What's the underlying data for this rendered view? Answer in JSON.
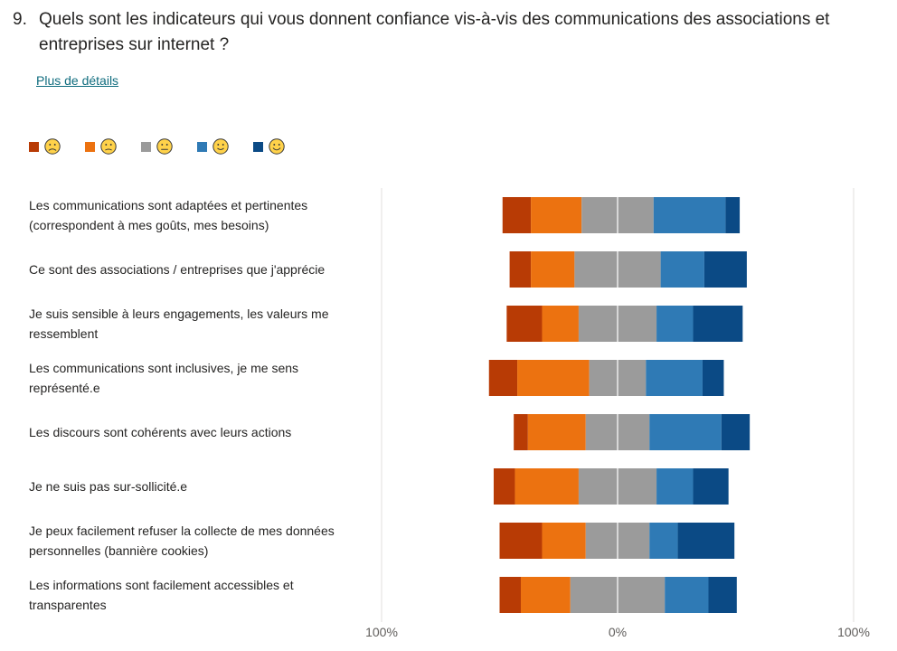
{
  "question": {
    "number": "9.",
    "text": "Quels sont les indicateurs qui vous donnent confiance vis-à-vis des communications des associations et entreprises sur internet ?"
  },
  "details_link": "Plus de détails",
  "chart_data": {
    "type": "bar",
    "subtype": "diverging-stacked-horizontal",
    "title": "Quels sont les indicateurs qui vous donnent confiance vis-à-vis des communications des associations et entreprises sur internet ?",
    "series": [
      {
        "name": "very-negative",
        "icon": "frowning-face",
        "color": "#b83b05"
      },
      {
        "name": "negative",
        "icon": "slightly-frowning-face",
        "color": "#ec7210"
      },
      {
        "name": "neutral",
        "icon": "neutral-face",
        "color": "#9b9b9b"
      },
      {
        "name": "positive",
        "icon": "slightly-smiling-face",
        "color": "#2f7ab5"
      },
      {
        "name": "very-positive",
        "icon": "smiling-face",
        "color": "#0b4a85"
      }
    ],
    "categories": [
      "Les communications sont adaptées et pertinentes (correspondent à mes goûts, mes besoins)",
      "Ce sont des associations / entreprises que j'apprécie",
      "Je suis sensible à leurs engagements, les valeurs me ressemblent",
      "Les communications sont inclusives, je me sens représenté.e",
      "Les discours sont cohérents avec leurs actions",
      "Je ne suis pas sur-sollicité.e",
      "Je peux facilement refuser la collecte de mes données personnelles (bannière cookies)",
      "Les informations sont facilement accessibles et transparentes"
    ],
    "values_pct": [
      [
        12,
        21.5,
        30.5,
        30.5,
        6
      ],
      [
        9,
        18.5,
        36.5,
        18.5,
        18
      ],
      [
        15,
        15.5,
        33,
        15.5,
        21
      ],
      [
        12,
        30.5,
        24,
        24,
        9
      ],
      [
        6,
        24.5,
        27,
        30.5,
        12
      ],
      [
        9,
        27,
        33,
        15.5,
        15
      ],
      [
        18,
        18.5,
        27,
        12,
        24
      ],
      [
        9,
        21,
        40,
        18.5,
        12
      ]
    ],
    "neutral_split": "centered",
    "x_ticks": [
      "100%",
      "0%",
      "100%"
    ],
    "xlim": [
      -100,
      100
    ],
    "grid": true
  }
}
